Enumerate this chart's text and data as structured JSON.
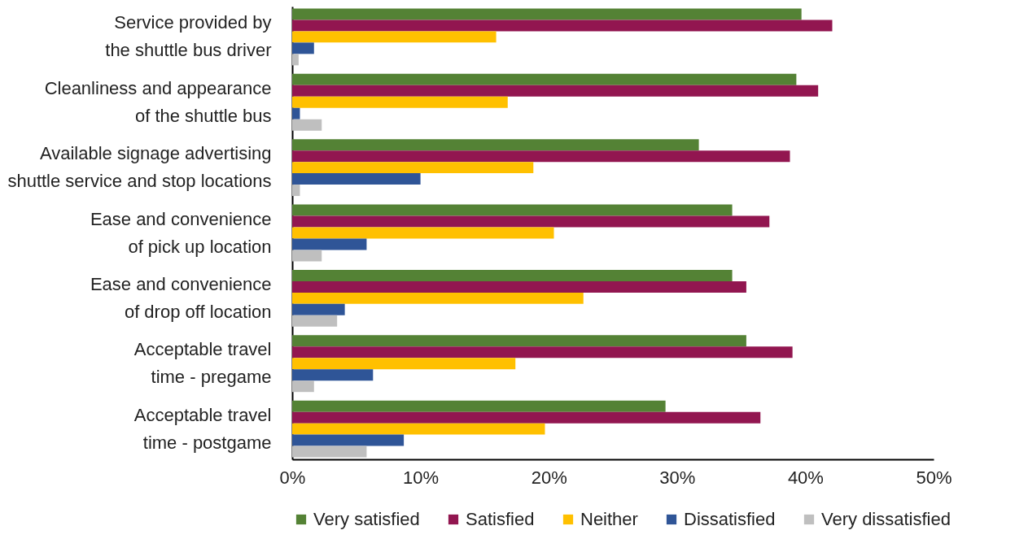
{
  "chart_data": {
    "type": "bar",
    "orientation": "horizontal",
    "categories": [
      "Service provided by\nthe shuttle bus driver",
      "Cleanliness and appearance\nof the shuttle bus",
      "Available signage advertising\nshuttle service and stop locations",
      "Ease and convenience\nof pick up location",
      "Ease and convenience\nof drop off location",
      "Acceptable travel\ntime - pregame",
      "Acceptable travel\ntime - postgame"
    ],
    "series": [
      {
        "name": "Very satisfied",
        "color": "#548235",
        "values": [
          39.7,
          39.3,
          31.7,
          34.3,
          34.3,
          35.4,
          29.1
        ]
      },
      {
        "name": "Satisfied",
        "color": "#921650",
        "values": [
          42.1,
          41.0,
          38.8,
          37.2,
          35.4,
          39.0,
          36.5
        ]
      },
      {
        "name": "Neither",
        "color": "#ffc000",
        "values": [
          15.9,
          16.8,
          18.8,
          20.4,
          22.7,
          17.4,
          19.7
        ]
      },
      {
        "name": "Dissatisfied",
        "color": "#2f5597",
        "values": [
          1.7,
          0.6,
          10.0,
          5.8,
          4.1,
          6.3,
          8.7
        ]
      },
      {
        "name": "Very dissatisfied",
        "color": "#bfbfbf",
        "values": [
          0.5,
          2.3,
          0.6,
          2.3,
          3.5,
          1.7,
          5.8
        ]
      }
    ],
    "xlim": [
      0,
      50
    ],
    "xticks": [
      {
        "value": 0,
        "label": "0%"
      },
      {
        "value": 10,
        "label": "10%"
      },
      {
        "value": 20,
        "label": "20%"
      },
      {
        "value": 30,
        "label": "30%"
      },
      {
        "value": 40,
        "label": "40%"
      },
      {
        "value": 50,
        "label": "50%"
      }
    ],
    "grid": false,
    "legend": "bottom"
  }
}
